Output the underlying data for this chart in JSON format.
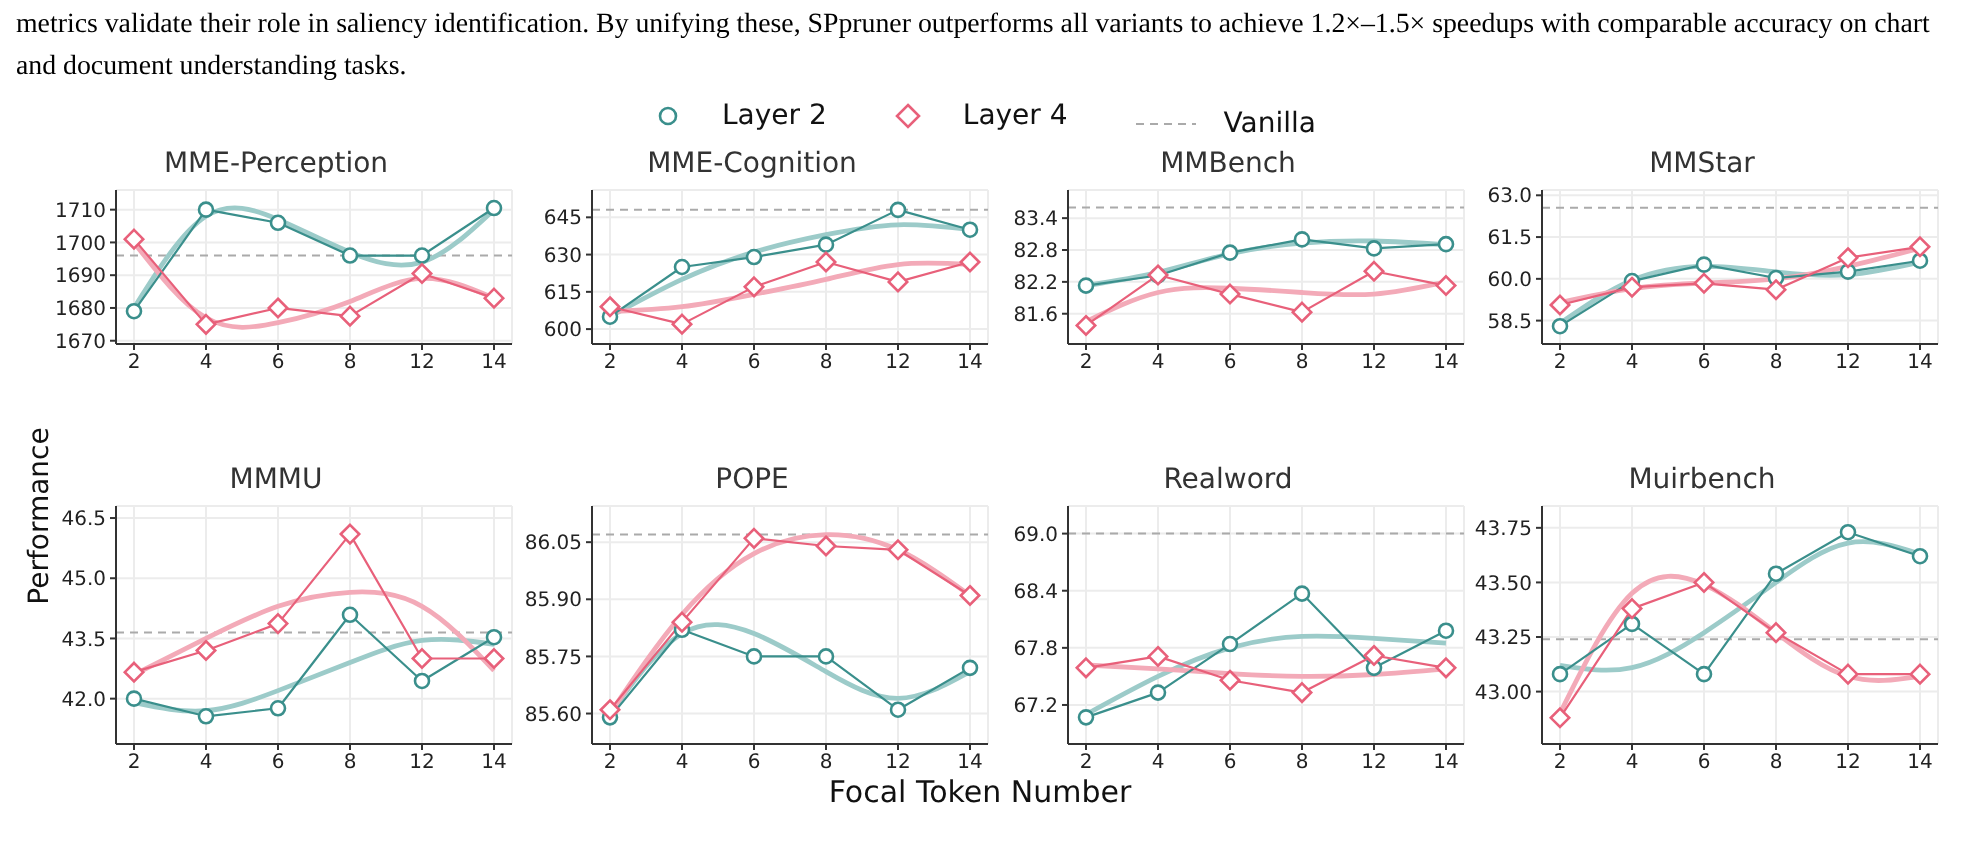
{
  "chart_data": [
    {
      "type": "line",
      "title": "MME-Perception",
      "legend": "top",
      "annotations": [
        "metrics validate their role in saliency identification. By unifying these, SPpruner outperforms all variants to achieve 1.2×–1.5× speedups with comparable accuracy on chart and document understanding tasks."
      ],
      "categories": [
        "2",
        "4",
        "6",
        "8",
        "12",
        "14"
      ],
      "ylim": [
        1669,
        1716
      ],
      "yticks": [
        1670,
        1680,
        1690,
        1700,
        1710
      ],
      "grid": true,
      "ref_lines": [
        {
          "axis": "y",
          "value": 1696,
          "label": "Vanilla",
          "color": "#aaaaaa",
          "line_style": "dashed"
        }
      ],
      "series": [
        {
          "name": "Layer 2",
          "color": "#3a8f8c",
          "marker": "circle",
          "values": [
            1679,
            1710,
            1706,
            1696,
            1696,
            1710.5
          ]
        },
        {
          "name": "Layer 4",
          "color": "#e8607a",
          "marker": "diamond",
          "values": [
            1701,
            1675,
            1680,
            1677.5,
            1690.5,
            1683
          ]
        },
        {
          "color": "#9ccbc9",
          "marker": "none",
          "values": [
            1680,
            1708,
            1707,
            1697,
            1694,
            1710
          ]
        },
        {
          "color": "#f3aab8",
          "marker": "none",
          "values": [
            1700,
            1677,
            1675.5,
            1682,
            1689,
            1683
          ]
        }
      ]
    },
    {
      "type": "line",
      "title": "MME-Cognition",
      "categories": [
        "2",
        "4",
        "6",
        "8",
        "12",
        "14"
      ],
      "ylim": [
        594,
        656
      ],
      "yticks": [
        600,
        615,
        630,
        645
      ],
      "grid": true,
      "ref_lines": [
        {
          "axis": "y",
          "value": 648,
          "color": "#aaaaaa",
          "line_style": "dashed"
        }
      ],
      "series": [
        {
          "color": "#3a8f8c",
          "marker": "circle",
          "values": [
            605,
            625,
            629,
            634,
            648,
            640
          ]
        },
        {
          "color": "#e8607a",
          "marker": "diamond",
          "values": [
            609,
            602,
            617,
            627,
            619,
            627
          ]
        },
        {
          "color": "#9ccbc9",
          "marker": "none",
          "values": [
            605,
            620,
            631,
            638,
            642,
            640
          ]
        },
        {
          "color": "#f3aab8",
          "marker": "none",
          "values": [
            607,
            609,
            614,
            620,
            626,
            626
          ]
        }
      ]
    },
    {
      "type": "line",
      "title": "MMBench",
      "categories": [
        "2",
        "4",
        "6",
        "8",
        "12",
        "14"
      ],
      "ylim": [
        81.03,
        83.93
      ],
      "yticks": [
        81.6,
        82.2,
        82.8,
        83.4
      ],
      "grid": true,
      "ref_lines": [
        {
          "axis": "y",
          "value": 83.6,
          "color": "#aaaaaa",
          "line_style": "dashed"
        }
      ],
      "series": [
        {
          "color": "#3a8f8c",
          "marker": "circle",
          "values": [
            82.13,
            82.32,
            82.75,
            83.0,
            82.83,
            82.91
          ]
        },
        {
          "color": "#e8607a",
          "marker": "diamond",
          "values": [
            81.38,
            82.33,
            81.97,
            81.63,
            82.4,
            82.13
          ]
        },
        {
          "color": "#9ccbc9",
          "marker": "none",
          "values": [
            82.13,
            82.38,
            82.73,
            82.93,
            82.97,
            82.9
          ]
        },
        {
          "color": "#f3aab8",
          "marker": "none",
          "values": [
            81.45,
            82.0,
            82.08,
            82.0,
            81.97,
            82.2
          ]
        }
      ]
    },
    {
      "type": "line",
      "title": "MMStar",
      "categories": [
        "2",
        "4",
        "6",
        "8",
        "12",
        "14"
      ],
      "ylim": [
        57.66,
        63.19
      ],
      "yticks": [
        {
          "value": 58.5,
          "label": "58.5"
        },
        {
          "value": 60,
          "label": "60.0"
        },
        {
          "value": 61.5,
          "label": "61.5"
        },
        {
          "value": 63,
          "label": "63.0"
        }
      ],
      "grid": true,
      "ref_lines": [
        {
          "axis": "y",
          "value": 62.55,
          "color": "#aaaaaa",
          "line_style": "dashed"
        }
      ],
      "series": [
        {
          "color": "#3a8f8c",
          "marker": "circle",
          "values": [
            58.3,
            59.92,
            60.51,
            60.03,
            60.26,
            60.65
          ]
        },
        {
          "color": "#e8607a",
          "marker": "diamond",
          "values": [
            59.06,
            59.7,
            59.84,
            59.61,
            60.76,
            61.15
          ]
        },
        {
          "color": "#9ccbc9",
          "marker": "none",
          "values": [
            58.4,
            59.95,
            60.45,
            60.25,
            60.15,
            60.6
          ]
        },
        {
          "color": "#f3aab8",
          "marker": "none",
          "values": [
            59.15,
            59.65,
            59.85,
            60.0,
            60.45,
            61.1
          ]
        }
      ]
    },
    {
      "type": "line",
      "title": "MMMU",
      "ylabel": "Performance",
      "categories": [
        "2",
        "4",
        "6",
        "8",
        "12",
        "14"
      ],
      "ylim": [
        40.87,
        46.8
      ],
      "yticks": [
        {
          "value": 42,
          "label": "42.0"
        },
        {
          "value": 43.5,
          "label": "43.5"
        },
        {
          "value": 45,
          "label": "45.0"
        },
        {
          "value": 46.5,
          "label": "46.5"
        }
      ],
      "grid": true,
      "ref_lines": [
        {
          "axis": "y",
          "value": 43.65,
          "color": "#aaaaaa",
          "line_style": "dashed"
        }
      ],
      "series": [
        {
          "color": "#3a8f8c",
          "marker": "circle",
          "values": [
            42.0,
            41.56,
            41.76,
            44.09,
            42.44,
            43.53
          ]
        },
        {
          "color": "#e8607a",
          "marker": "diamond",
          "values": [
            42.66,
            43.2,
            43.87,
            46.1,
            43.0,
            43.0
          ]
        },
        {
          "color": "#9ccbc9",
          "marker": "none",
          "values": [
            41.9,
            41.7,
            42.2,
            42.9,
            43.45,
            43.35
          ]
        },
        {
          "color": "#f3aab8",
          "marker": "none",
          "values": [
            42.6,
            43.5,
            44.3,
            44.65,
            44.3,
            42.7
          ]
        }
      ]
    },
    {
      "type": "line",
      "title": "POPE",
      "xlabel": "Focal Token Number",
      "categories": [
        "2",
        "4",
        "6",
        "8",
        "12",
        "14"
      ],
      "ylim": [
        85.52,
        86.145
      ],
      "yticks": [
        {
          "value": 85.6,
          "label": "85.60"
        },
        {
          "value": 85.75,
          "label": "85.75"
        },
        {
          "value": 85.9,
          "label": "85.90"
        },
        {
          "value": 86.05,
          "label": "86.05"
        }
      ],
      "grid": true,
      "ref_lines": [
        {
          "axis": "y",
          "value": 86.07,
          "color": "#aaaaaa",
          "line_style": "dashed"
        }
      ],
      "series": [
        {
          "color": "#3a8f8c",
          "marker": "circle",
          "values": [
            85.59,
            85.82,
            85.75,
            85.75,
            85.61,
            85.72
          ]
        },
        {
          "color": "#e8607a",
          "marker": "diamond",
          "values": [
            85.61,
            85.84,
            86.06,
            86.04,
            86.03,
            85.91
          ]
        },
        {
          "color": "#9ccbc9",
          "marker": "none",
          "values": [
            85.6,
            85.81,
            85.81,
            85.71,
            85.64,
            85.71
          ]
        },
        {
          "color": "#f3aab8",
          "marker": "none",
          "values": [
            85.6,
            85.86,
            86.02,
            86.07,
            86.03,
            85.91
          ]
        }
      ]
    },
    {
      "type": "line",
      "title": "Realword",
      "categories": [
        "2",
        "4",
        "6",
        "8",
        "12",
        "14"
      ],
      "ylim": [
        66.79,
        69.29
      ],
      "yticks": [
        67.2,
        67.8,
        68.4,
        {
          "value": 69,
          "label": "69.0"
        }
      ],
      "grid": true,
      "ref_lines": [
        {
          "axis": "y",
          "value": 69.0,
          "color": "#aaaaaa",
          "line_style": "dashed"
        }
      ],
      "series": [
        {
          "color": "#3a8f8c",
          "marker": "circle",
          "values": [
            67.07,
            67.33,
            67.84,
            68.37,
            67.59,
            67.98
          ]
        },
        {
          "color": "#e8607a",
          "marker": "diamond",
          "values": [
            67.59,
            67.71,
            67.46,
            67.33,
            67.72,
            67.59
          ]
        },
        {
          "color": "#9ccbc9",
          "marker": "none",
          "values": [
            67.1,
            67.5,
            67.8,
            67.92,
            67.9,
            67.85
          ]
        },
        {
          "color": "#f3aab8",
          "marker": "none",
          "values": [
            67.62,
            67.58,
            67.53,
            67.5,
            67.52,
            67.58
          ]
        }
      ]
    },
    {
      "type": "line",
      "title": "Muirbench",
      "categories": [
        "2",
        "4",
        "6",
        "8",
        "12",
        "14"
      ],
      "ylim": [
        42.76,
        43.85
      ],
      "yticks": [
        {
          "value": 43,
          "label": "43.00"
        },
        43.25,
        {
          "value": 43.5,
          "label": "43.50"
        },
        43.75
      ],
      "grid": true,
      "ref_lines": [
        {
          "axis": "y",
          "value": 43.24,
          "color": "#aaaaaa",
          "line_style": "dashed"
        }
      ],
      "series": [
        {
          "color": "#3a8f8c",
          "marker": "circle",
          "values": [
            43.08,
            43.31,
            43.08,
            43.54,
            43.73,
            43.62
          ]
        },
        {
          "color": "#e8607a",
          "marker": "diamond",
          "values": [
            42.88,
            43.38,
            43.5,
            43.27,
            43.08,
            43.08
          ]
        },
        {
          "color": "#9ccbc9",
          "marker": "none",
          "values": [
            43.12,
            43.11,
            43.27,
            43.5,
            43.68,
            43.63
          ]
        },
        {
          "color": "#f3aab8",
          "marker": "none",
          "values": [
            42.9,
            43.45,
            43.49,
            43.27,
            43.07,
            43.07
          ]
        }
      ]
    }
  ]
}
